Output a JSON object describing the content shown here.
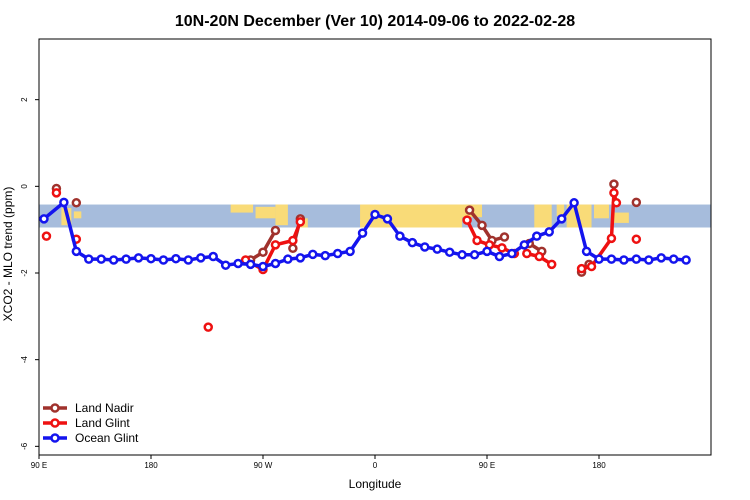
{
  "chart_data": {
    "type": "line",
    "title": "10N-20N December (Ver 10)   2014-09-06 to 2022-02-28",
    "xlabel": "Longitude",
    "ylabel": "XCO2 - MLO trend (ppm)",
    "xlim": [
      -90,
      180
    ],
    "ylim": [
      -6.2,
      3.4
    ],
    "x_ticks": [
      {
        "value": -90,
        "label": "90 E"
      },
      {
        "value": -45,
        "label": "180"
      },
      {
        "value": 0,
        "label": "90 W"
      },
      {
        "value": 45,
        "label": "0"
      },
      {
        "value": 90,
        "label": "90 E"
      },
      {
        "value": 135,
        "label": "180"
      }
    ],
    "y_ticks": [
      {
        "value": -6,
        "label": "-6"
      },
      {
        "value": -4,
        "label": "-4"
      },
      {
        "value": -2,
        "label": "-2"
      },
      {
        "value": 0,
        "label": "0"
      },
      {
        "value": 2,
        "label": "2"
      }
    ],
    "legend_position": "bottom-left",
    "colors": {
      "land_nadir": "#a0322d",
      "land_glint": "#ee1111",
      "ocean_glint": "#1414ee",
      "band_ocean": "#a6bcdc",
      "band_land": "#f9db78"
    },
    "band_range": [
      -0.95,
      -0.42
    ],
    "series": [
      {
        "name": "Land Nadir",
        "color_key": "land_nadir",
        "segments": [
          [
            [
              -83,
              -0.05
            ]
          ],
          [
            [
              -75,
              -0.38
            ]
          ],
          [
            [
              -5,
              -1.7
            ],
            [
              0,
              -1.52
            ],
            [
              5,
              -1.02
            ]
          ],
          [
            [
              12,
              -1.43
            ],
            [
              15,
              -0.75
            ]
          ],
          [
            [
              83,
              -0.55
            ],
            [
              88,
              -0.9
            ],
            [
              92,
              -1.25
            ],
            [
              97,
              -1.17
            ]
          ],
          [
            [
              107,
              -1.32
            ],
            [
              112,
              -1.5
            ]
          ],
          [
            [
              128,
              -1.98
            ],
            [
              131,
              -1.8
            ]
          ],
          [
            [
              141,
              0.05
            ]
          ],
          [
            [
              150,
              -0.37
            ]
          ]
        ]
      },
      {
        "name": "Land Glint",
        "color_key": "land_glint",
        "segments": [
          [
            [
              -87,
              -1.15
            ]
          ],
          [
            [
              -83,
              -0.15
            ]
          ],
          [
            [
              -75,
              -1.22
            ]
          ],
          [
            [
              -22,
              -3.25
            ]
          ],
          [
            [
              -7,
              -1.7
            ],
            [
              0,
              -1.92
            ],
            [
              5,
              -1.35
            ],
            [
              12,
              -1.25
            ],
            [
              15,
              -0.82
            ]
          ],
          [
            [
              82,
              -0.78
            ],
            [
              86,
              -1.25
            ],
            [
              91,
              -1.35
            ],
            [
              96,
              -1.42
            ],
            [
              101,
              -1.55
            ]
          ],
          [
            [
              106,
              -1.55
            ],
            [
              111,
              -1.62
            ],
            [
              116,
              -1.8
            ]
          ],
          [
            [
              128,
              -1.9
            ],
            [
              132,
              -1.85
            ],
            [
              140,
              -1.2
            ],
            [
              141,
              -0.15
            ],
            [
              142,
              -0.38
            ]
          ],
          [
            [
              150,
              -1.22
            ]
          ]
        ]
      },
      {
        "name": "Ocean Glint",
        "color_key": "ocean_glint",
        "segments": [
          [
            [
              -88,
              -0.75
            ],
            [
              -80,
              -0.37
            ],
            [
              -75,
              -1.5
            ],
            [
              -70,
              -1.68
            ],
            [
              -65,
              -1.68
            ],
            [
              -60,
              -1.7
            ],
            [
              -55,
              -1.68
            ],
            [
              -50,
              -1.65
            ],
            [
              -45,
              -1.67
            ],
            [
              -40,
              -1.7
            ],
            [
              -35,
              -1.67
            ],
            [
              -30,
              -1.7
            ],
            [
              -25,
              -1.65
            ],
            [
              -20,
              -1.62
            ],
            [
              -15,
              -1.82
            ],
            [
              -10,
              -1.78
            ],
            [
              -5,
              -1.8
            ],
            [
              0,
              -1.85
            ],
            [
              5,
              -1.78
            ],
            [
              10,
              -1.68
            ],
            [
              15,
              -1.65
            ],
            [
              20,
              -1.57
            ],
            [
              25,
              -1.6
            ],
            [
              30,
              -1.55
            ],
            [
              35,
              -1.5
            ],
            [
              40,
              -1.08
            ],
            [
              45,
              -0.65
            ],
            [
              50,
              -0.75
            ],
            [
              55,
              -1.15
            ],
            [
              60,
              -1.3
            ],
            [
              65,
              -1.4
            ],
            [
              70,
              -1.45
            ],
            [
              75,
              -1.52
            ],
            [
              80,
              -1.58
            ],
            [
              85,
              -1.58
            ],
            [
              90,
              -1.5
            ],
            [
              95,
              -1.62
            ],
            [
              100,
              -1.55
            ],
            [
              105,
              -1.35
            ],
            [
              110,
              -1.15
            ],
            [
              115,
              -1.05
            ],
            [
              120,
              -0.75
            ],
            [
              125,
              -0.38
            ],
            [
              130,
              -1.5
            ],
            [
              135,
              -1.68
            ],
            [
              140,
              -1.68
            ],
            [
              145,
              -1.7
            ],
            [
              150,
              -1.68
            ],
            [
              155,
              -1.7
            ],
            [
              160,
              -1.65
            ],
            [
              165,
              -1.68
            ],
            [
              170,
              -1.7
            ]
          ]
        ]
      }
    ]
  }
}
